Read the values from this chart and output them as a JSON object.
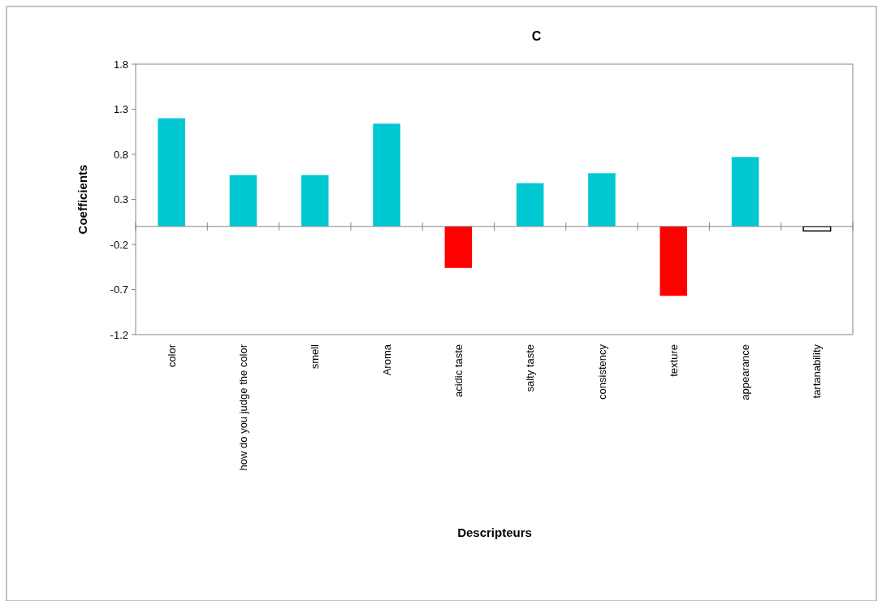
{
  "chart_data": {
    "type": "bar",
    "title": "C",
    "xlabel": "Descripteurs",
    "ylabel": "Coefficients",
    "categories": [
      "color",
      "how do you judge the color",
      "smell",
      "Aroma",
      "acidic taste",
      "salty taste",
      "consistency",
      "texture",
      "appearance",
      "tartanability"
    ],
    "values": [
      1.2,
      0.57,
      0.57,
      1.14,
      -0.46,
      0.48,
      0.59,
      -0.77,
      0.77,
      -0.05
    ],
    "colors": [
      "#00c8d2",
      "#00c8d2",
      "#00c8d2",
      "#00c8d2",
      "#ff0000",
      "#00c8d2",
      "#00c8d2",
      "#ff0000",
      "#00c8d2",
      "#ffffff"
    ],
    "ylim": [
      -1.2,
      1.8
    ],
    "yticks": [
      -1.2,
      -0.7,
      -0.2,
      0.3,
      0.8,
      1.3,
      1.8
    ],
    "grid": false
  }
}
